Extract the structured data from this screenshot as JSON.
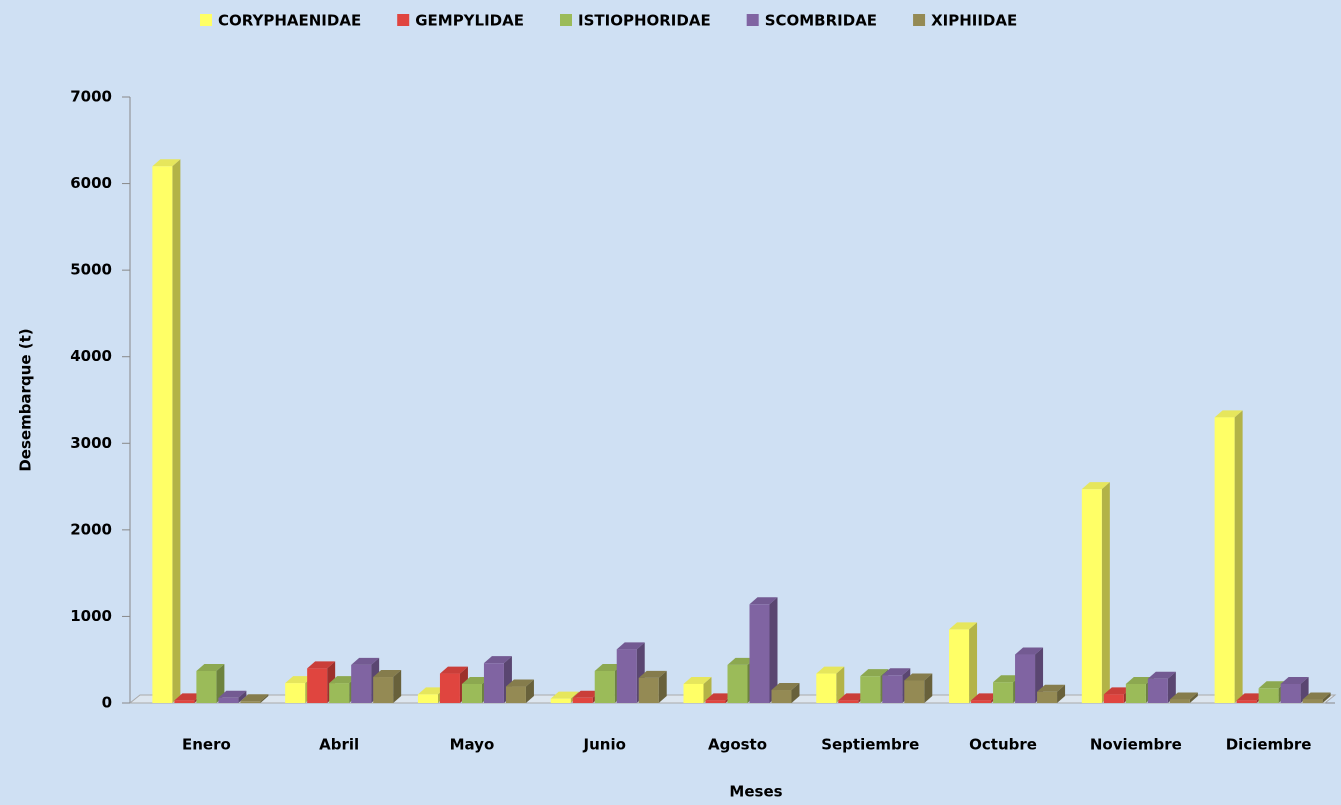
{
  "chart_data": {
    "type": "bar",
    "x_label": "Meses",
    "y_label": "Desembarque (t)",
    "categories": [
      "Enero",
      "Abril",
      "Mayo",
      "Junio",
      "Agosto",
      "Septiembre",
      "Octubre",
      "Noviembre",
      "Diciembre"
    ],
    "series": [
      {
        "name": "CORYPHAENIDAE",
        "color": "#ffff66",
        "values": [
          6200,
          230,
          100,
          50,
          220,
          340,
          850,
          2470,
          3300
        ]
      },
      {
        "name": "GEMPYLIDAE",
        "color": "#e0453f",
        "values": [
          30,
          400,
          340,
          60,
          30,
          30,
          30,
          100,
          30
        ]
      },
      {
        "name": "ISTIOPHORIDAE",
        "color": "#9bbb59",
        "values": [
          370,
          230,
          220,
          370,
          440,
          310,
          240,
          220,
          170
        ]
      },
      {
        "name": "SCOMBRIDAE",
        "color": "#8064a2",
        "values": [
          60,
          440,
          460,
          620,
          1140,
          320,
          560,
          280,
          220
        ]
      },
      {
        "name": "XIPHIIDAE",
        "color": "#948a54",
        "values": [
          20,
          300,
          190,
          290,
          150,
          260,
          130,
          40,
          40
        ]
      }
    ],
    "ylim": [
      0,
      7000
    ],
    "yticks": [
      0,
      1000,
      2000,
      3000,
      4000,
      5000,
      6000,
      7000
    ],
    "legend": "top",
    "grid": false
  }
}
